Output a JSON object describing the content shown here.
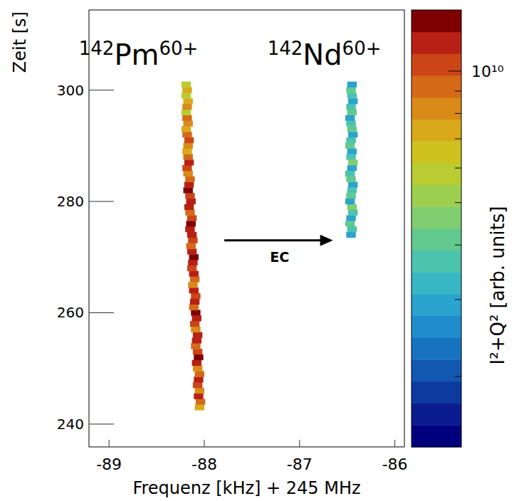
{
  "chart_data": {
    "type": "heatmap",
    "x_label": "Frequenz [kHz] + 245 MHz",
    "y_label": "Zeit [s]",
    "xlim": [
      -89.21,
      -85.9
    ],
    "xticks": [
      -89,
      -88,
      -87,
      -86
    ],
    "ylim": [
      235.9,
      314.4
    ],
    "yticks": [
      240,
      260,
      280,
      300
    ],
    "series": [
      {
        "name": "142Pm60+",
        "t": [
          243,
          244,
          245,
          246,
          247,
          248,
          249,
          250,
          251,
          252,
          253,
          254,
          255,
          256,
          257,
          258,
          259,
          260,
          261,
          262,
          263,
          264,
          265,
          266,
          267,
          268,
          269,
          270,
          271,
          272,
          273,
          274,
          275,
          276,
          277,
          278,
          279,
          280,
          281,
          282,
          283,
          284,
          285,
          286,
          287,
          288,
          289,
          290,
          291,
          292,
          293,
          294,
          295,
          296,
          297,
          298,
          299,
          300,
          301
        ],
        "f": [
          -88.05,
          -88.04,
          -88.06,
          -88.05,
          -88.07,
          -88.06,
          -88.05,
          -88.07,
          -88.08,
          -88.06,
          -88.07,
          -88.09,
          -88.08,
          -88.07,
          -88.09,
          -88.1,
          -88.08,
          -88.09,
          -88.11,
          -88.1,
          -88.09,
          -88.11,
          -88.12,
          -88.1,
          -88.11,
          -88.13,
          -88.12,
          -88.11,
          -88.13,
          -88.14,
          -88.12,
          -88.13,
          -88.15,
          -88.14,
          -88.13,
          -88.15,
          -88.16,
          -88.14,
          -88.15,
          -88.17,
          -88.16,
          -88.15,
          -88.17,
          -88.18,
          -88.16,
          -88.17,
          -88.18,
          -88.17,
          -88.16,
          -88.18,
          -88.19,
          -88.17,
          -88.18,
          -88.19,
          -88.18,
          -88.17,
          -88.19,
          -88.18,
          -88.19
        ],
        "intensity": [
          7000000000.0,
          9000000000.0,
          11000000000.0,
          8000000000.0,
          10000000000.0,
          12000000000.0,
          9000000000.0,
          8000000000.0,
          11000000000.0,
          13000000000.0,
          10000000000.0,
          9000000000.0,
          12000000000.0,
          11000000000.0,
          8000000000.0,
          10000000000.0,
          12000000000.0,
          13000000000.0,
          9000000000.0,
          11000000000.0,
          10000000000.0,
          12000000000.0,
          8000000000.0,
          9000000000.0,
          11000000000.0,
          10000000000.0,
          12000000000.0,
          13000000000.0,
          11000000000.0,
          9000000000.0,
          10000000000.0,
          12000000000.0,
          11000000000.0,
          13000000000.0,
          10000000000.0,
          9000000000.0,
          12000000000.0,
          11000000000.0,
          10000000000.0,
          13000000000.0,
          12000000000.0,
          9000000000.0,
          8000000000.0,
          10000000000.0,
          11000000000.0,
          9000000000.0,
          7000000000.0,
          8000000000.0,
          10000000000.0,
          9000000000.0,
          7000000000.0,
          8000000000.0,
          9000000000.0,
          6000000000.0,
          8000000000.0,
          7000000000.0,
          6000000000.0,
          7000000000.0,
          6000000000.0
        ]
      },
      {
        "name": "142Nd60+",
        "t": [
          274,
          275,
          276,
          277,
          278,
          279,
          280,
          281,
          282,
          283,
          284,
          285,
          286,
          287,
          288,
          289,
          290,
          291,
          292,
          293,
          294,
          295,
          296,
          297,
          298,
          299,
          300,
          301
        ],
        "f": [
          -86.46,
          -86.45,
          -86.47,
          -86.46,
          -86.44,
          -86.45,
          -86.47,
          -86.46,
          -86.45,
          -86.44,
          -86.46,
          -86.47,
          -86.45,
          -86.44,
          -86.46,
          -86.45,
          -86.47,
          -86.46,
          -86.44,
          -86.45,
          -86.46,
          -86.47,
          -86.45,
          -86.46,
          -86.44,
          -86.45,
          -86.46,
          -86.45
        ],
        "intensity": [
          3000000000.0,
          3500000000.0,
          4000000000.0,
          3000000000.0,
          3500000000.0,
          4500000000.0,
          3000000000.0,
          4000000000.0,
          3500000000.0,
          3000000000.0,
          4000000000.0,
          3500000000.0,
          3000000000.0,
          4500000000.0,
          3500000000.0,
          3000000000.0,
          4000000000.0,
          3500000000.0,
          3000000000.0,
          4000000000.0,
          3500000000.0,
          3000000000.0,
          4000000000.0,
          3500000000.0,
          3000000000.0,
          3500000000.0,
          4000000000.0,
          3000000000.0
        ]
      }
    ],
    "annotations": [
      {
        "mass": "142",
        "symbol": "Pm",
        "charge": "60+",
        "x": -88.69,
        "y": 304.5
      },
      {
        "mass": "142",
        "symbol": "Nd",
        "charge": "60+",
        "x": -86.74,
        "y": 304.5
      },
      {
        "text": "EC",
        "x": -87.21,
        "y": 269.2,
        "arrow_x": [
          -87.79,
          -86.65
        ],
        "arrow_y": 273.0
      }
    ],
    "colorbar": {
      "label": "I²+Q² [arb. units]",
      "lim": [
        1380000000.0,
        13800000000.0
      ],
      "log": true,
      "ticks": [
        {
          "value": 10000000000.0,
          "label": "10¹⁰"
        }
      ],
      "minor_ticks": [
        2000000000.0,
        3000000000.0,
        4000000000.0,
        5000000000.0,
        6000000000.0,
        7000000000.0,
        8000000000.0,
        9000000000.0
      ],
      "colors": [
        "#00007f",
        "#0a1c8f",
        "#0d3a9e",
        "#1258b0",
        "#1772c0",
        "#1f8ccc",
        "#2aa3cf",
        "#38b6c4",
        "#4cc3ad",
        "#62c98f",
        "#7fce6f",
        "#9ccf4f",
        "#b9cc32",
        "#cfc21f",
        "#d9a91a",
        "#d98a19",
        "#d46a18",
        "#cc4517",
        "#b82015",
        "#7f0000"
      ]
    }
  }
}
